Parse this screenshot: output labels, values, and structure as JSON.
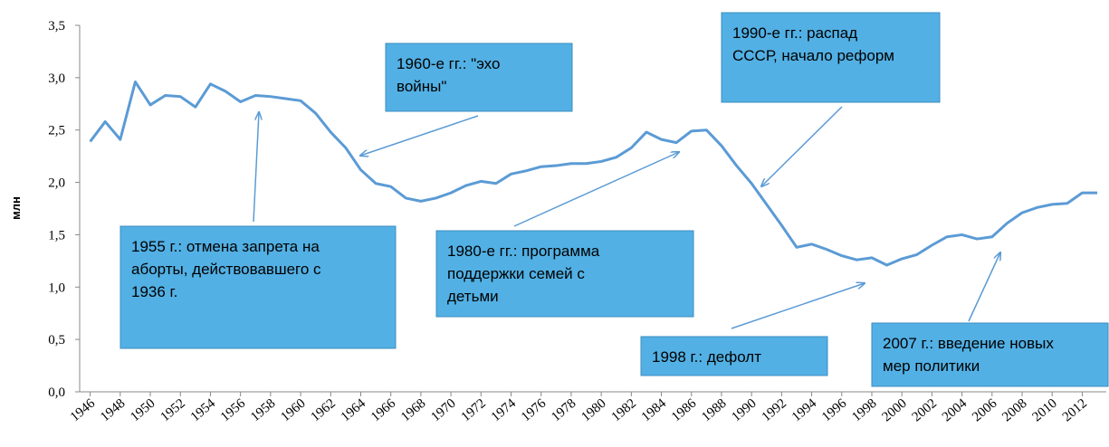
{
  "chart_data": {
    "type": "line",
    "y_label": "млн",
    "x": [
      1946,
      1947,
      1948,
      1949,
      1950,
      1951,
      1952,
      1953,
      1954,
      1955,
      1956,
      1957,
      1958,
      1959,
      1960,
      1961,
      1962,
      1963,
      1964,
      1965,
      1966,
      1967,
      1968,
      1969,
      1970,
      1971,
      1972,
      1973,
      1974,
      1975,
      1976,
      1977,
      1978,
      1979,
      1980,
      1981,
      1982,
      1983,
      1984,
      1985,
      1986,
      1987,
      1988,
      1989,
      1990,
      1991,
      1992,
      1993,
      1994,
      1995,
      1996,
      1997,
      1998,
      1999,
      2000,
      2001,
      2002,
      2003,
      2004,
      2005,
      2006,
      2007,
      2008,
      2009,
      2010,
      2011,
      2012,
      2013
    ],
    "series": [
      {
        "color": "#5b9bd5",
        "values": [
          2.39,
          2.58,
          2.41,
          2.96,
          2.74,
          2.83,
          2.82,
          2.72,
          2.94,
          2.87,
          2.77,
          2.83,
          2.82,
          2.8,
          2.78,
          2.66,
          2.48,
          2.33,
          2.12,
          1.99,
          1.96,
          1.85,
          1.82,
          1.85,
          1.9,
          1.97,
          2.01,
          1.99,
          2.08,
          2.11,
          2.15,
          2.16,
          2.18,
          2.18,
          2.2,
          2.24,
          2.33,
          2.48,
          2.41,
          2.38,
          2.49,
          2.5,
          2.35,
          2.16,
          1.99,
          1.79,
          1.59,
          1.38,
          1.41,
          1.36,
          1.3,
          1.26,
          1.28,
          1.21,
          1.27,
          1.31,
          1.4,
          1.48,
          1.5,
          1.46,
          1.48,
          1.61,
          1.71,
          1.76,
          1.79,
          1.8,
          1.9,
          1.9
        ]
      }
    ],
    "xlim": [
      1945.3,
      2013.6
    ],
    "xticks": [
      1946,
      1948,
      1950,
      1952,
      1954,
      1956,
      1958,
      1960,
      1962,
      1964,
      1966,
      1968,
      1970,
      1972,
      1974,
      1976,
      1978,
      1980,
      1982,
      1984,
      1986,
      1988,
      1990,
      1992,
      1994,
      1996,
      1998,
      2000,
      2002,
      2004,
      2006,
      2008,
      2010,
      2012
    ],
    "ylim": [
      0,
      3.5
    ],
    "yticks": [
      {
        "value": 0,
        "label": "0,0"
      },
      {
        "value": 0.5,
        "label": "0,5"
      },
      {
        "value": 1,
        "label": "1,0"
      },
      {
        "value": 1.5,
        "label": "1,5"
      },
      {
        "value": 2,
        "label": "2,0"
      },
      {
        "value": 2.5,
        "label": "2,5"
      },
      {
        "value": 3,
        "label": "3,0"
      },
      {
        "value": 3.5,
        "label": "3,5"
      }
    ],
    "annotations": [
      {
        "lines": [
          "1955 г.: отмена запрета на",
          "аборты, действовавшего с",
          "1936 г."
        ]
      },
      {
        "lines": [
          "1960-е гг.: \"эхо",
          "войны\""
        ]
      },
      {
        "lines": [
          "1980-е гг.: программа",
          "поддержки семей с",
          "детьми"
        ]
      },
      {
        "lines": [
          "1990-е гг.: распад",
          "СССР, начало реформ"
        ]
      },
      {
        "lines": [
          "1998 г.: дефолт"
        ]
      },
      {
        "lines": [
          "2007 г.: введение новых",
          "мер политики"
        ]
      }
    ]
  }
}
